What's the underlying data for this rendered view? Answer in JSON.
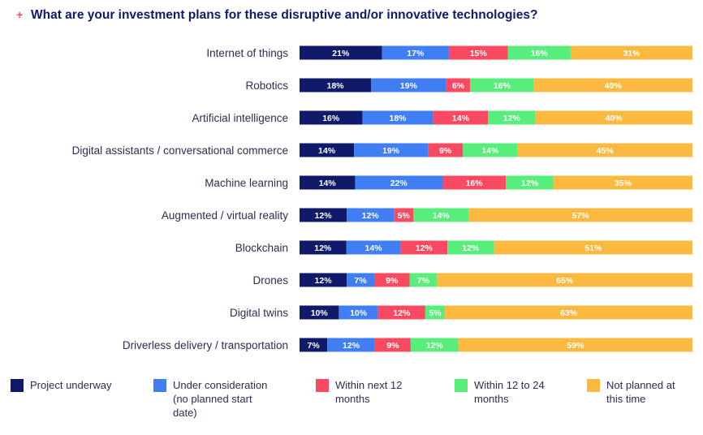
{
  "header": {
    "plus": "+",
    "title": "What are your investment plans for these disruptive and/or innovative technologies?"
  },
  "chart_data": {
    "type": "bar",
    "orientation": "horizontal",
    "stacked": true,
    "title": "What are your investment plans for these disruptive and/or innovative technologies?",
    "categories": [
      "Internet of things",
      "Robotics",
      "Artificial intelligence",
      "Digital assistants / conversational commerce",
      "Machine learning",
      "Augmented / virtual reality",
      "Blockchain",
      "Drones",
      "Digital twins",
      "Driverless delivery / transportation"
    ],
    "series": [
      {
        "name": "Project underway",
        "color": "#0f1a6b",
        "values": [
          21,
          18,
          16,
          14,
          14,
          12,
          12,
          12,
          10,
          7
        ]
      },
      {
        "name": "Under consideration (no planned start date)",
        "color": "#3f7ef3",
        "values": [
          17,
          19,
          18,
          19,
          22,
          12,
          14,
          7,
          10,
          12
        ]
      },
      {
        "name": "Within next 12 months",
        "color": "#fa4a62",
        "values": [
          15,
          6,
          14,
          9,
          16,
          5,
          12,
          9,
          12,
          9
        ]
      },
      {
        "name": "Within 12 to 24 months",
        "color": "#57ee7c",
        "values": [
          16,
          16,
          12,
          14,
          12,
          14,
          12,
          7,
          5,
          12
        ]
      },
      {
        "name": "Not planned at this time",
        "color": "#fbb93f",
        "values": [
          31,
          40,
          40,
          45,
          35,
          57,
          51,
          65,
          63,
          59
        ]
      }
    ],
    "value_suffix": "%",
    "grid": false,
    "legend_position": "bottom"
  },
  "legend": {
    "items": [
      {
        "label": "Project underway",
        "color": "#0f1a6b"
      },
      {
        "label": "Under consideration\n(no planned start\ndate)",
        "color": "#3f7ef3"
      },
      {
        "label": "Within next 12\nmonths",
        "color": "#fa4a62"
      },
      {
        "label": "Within 12 to 24\nmonths",
        "color": "#57ee7c"
      },
      {
        "label": "Not planned at\nthis time",
        "color": "#fbb93f"
      }
    ]
  }
}
